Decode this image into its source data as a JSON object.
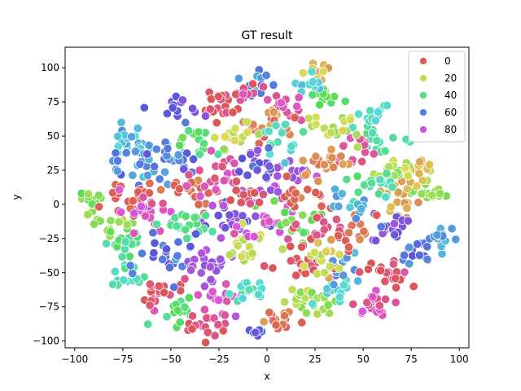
{
  "chart_data": {
    "type": "scatter",
    "title": "GT result",
    "xlabel": "x",
    "ylabel": "y",
    "xlim": [
      -105,
      105
    ],
    "ylim": [
      -105,
      115
    ],
    "xticks": [
      -100,
      -75,
      -50,
      -25,
      0,
      25,
      50,
      75,
      100
    ],
    "yticks": [
      -100,
      -75,
      -50,
      -25,
      0,
      25,
      50,
      75,
      100
    ],
    "grid": false,
    "legend_position": "top-right",
    "legend": [
      {
        "label": "0",
        "color": "#db5f57"
      },
      {
        "label": "20",
        "color": "#b9db57"
      },
      {
        "label": "40",
        "color": "#57db80"
      },
      {
        "label": "60",
        "color": "#5780db"
      },
      {
        "label": "80",
        "color": "#c957db"
      }
    ],
    "hue_range": [
      0,
      99
    ],
    "clusters": [
      {
        "x": -92,
        "y": 3,
        "hue": 28,
        "n": 14,
        "spread": 4
      },
      {
        "x": -80,
        "y": -14,
        "hue": 25,
        "n": 14,
        "spread": 5
      },
      {
        "x": -75,
        "y": -28,
        "hue": 38,
        "n": 16,
        "spread": 5
      },
      {
        "x": -72,
        "y": 45,
        "hue": 52,
        "n": 20,
        "spread": 6
      },
      {
        "x": -68,
        "y": 30,
        "hue": 58,
        "n": 22,
        "spread": 7
      },
      {
        "x": -70,
        "y": 5,
        "hue": 0,
        "n": 24,
        "spread": 8
      },
      {
        "x": -62,
        "y": -5,
        "hue": 85,
        "n": 22,
        "spread": 7
      },
      {
        "x": -70,
        "y": -55,
        "hue": 44,
        "n": 16,
        "spread": 5
      },
      {
        "x": -55,
        "y": -65,
        "hue": 96,
        "n": 20,
        "spread": 6
      },
      {
        "x": -45,
        "y": -80,
        "hue": 36,
        "n": 16,
        "spread": 5
      },
      {
        "x": -30,
        "y": -88,
        "hue": 94,
        "n": 18,
        "spread": 5
      },
      {
        "x": -25,
        "y": -70,
        "hue": 84,
        "n": 18,
        "spread": 6
      },
      {
        "x": -10,
        "y": -62,
        "hue": 46,
        "n": 18,
        "spread": 6
      },
      {
        "x": -5,
        "y": -92,
        "hue": 65,
        "n": 6,
        "spread": 2
      },
      {
        "x": 5,
        "y": -85,
        "hue": 2,
        "n": 18,
        "spread": 4
      },
      {
        "x": 15,
        "y": -70,
        "hue": 22,
        "n": 14,
        "spread": 4
      },
      {
        "x": 25,
        "y": -72,
        "hue": 24,
        "n": 14,
        "spread": 5
      },
      {
        "x": 35,
        "y": -60,
        "hue": 50,
        "n": 14,
        "spread": 5
      },
      {
        "x": 40,
        "y": -45,
        "hue": 58,
        "n": 14,
        "spread": 5
      },
      {
        "x": 55,
        "y": -70,
        "hue": 88,
        "n": 20,
        "spread": 5
      },
      {
        "x": 62,
        "y": -50,
        "hue": 96,
        "n": 22,
        "spread": 6
      },
      {
        "x": 75,
        "y": -35,
        "hue": 62,
        "n": 14,
        "spread": 5
      },
      {
        "x": 88,
        "y": -25,
        "hue": 56,
        "n": 16,
        "spread": 5
      },
      {
        "x": 85,
        "y": 8,
        "hue": 24,
        "n": 18,
        "spread": 5
      },
      {
        "x": 70,
        "y": 2,
        "hue": 10,
        "n": 20,
        "spread": 7
      },
      {
        "x": 65,
        "y": -15,
        "hue": 70,
        "n": 20,
        "spread": 7
      },
      {
        "x": 78,
        "y": 25,
        "hue": 12,
        "n": 14,
        "spread": 4
      },
      {
        "x": 68,
        "y": 28,
        "hue": 20,
        "n": 16,
        "spread": 5
      },
      {
        "x": 55,
        "y": 15,
        "hue": 42,
        "n": 20,
        "spread": 7
      },
      {
        "x": 58,
        "y": 45,
        "hue": 40,
        "n": 18,
        "spread": 7
      },
      {
        "x": 55,
        "y": 68,
        "hue": 44,
        "n": 12,
        "spread": 4
      },
      {
        "x": 45,
        "y": 40,
        "hue": 90,
        "n": 16,
        "spread": 6
      },
      {
        "x": 35,
        "y": 55,
        "hue": 20,
        "n": 18,
        "spread": 6
      },
      {
        "x": 30,
        "y": 80,
        "hue": 32,
        "n": 14,
        "spread": 5
      },
      {
        "x": 25,
        "y": 100,
        "hue": 10,
        "n": 10,
        "spread": 4
      },
      {
        "x": 20,
        "y": 88,
        "hue": 50,
        "n": 10,
        "spread": 4
      },
      {
        "x": 10,
        "y": 70,
        "hue": 90,
        "n": 18,
        "spread": 6
      },
      {
        "x": 0,
        "y": 60,
        "hue": 4,
        "n": 18,
        "spread": 7
      },
      {
        "x": -5,
        "y": 90,
        "hue": 60,
        "n": 12,
        "spread": 5
      },
      {
        "x": -15,
        "y": 80,
        "hue": 92,
        "n": 16,
        "spread": 5
      },
      {
        "x": -15,
        "y": 50,
        "hue": 18,
        "n": 18,
        "spread": 6
      },
      {
        "x": -25,
        "y": 70,
        "hue": 98,
        "n": 18,
        "spread": 6
      },
      {
        "x": -35,
        "y": 45,
        "hue": 36,
        "n": 18,
        "spread": 6
      },
      {
        "x": -45,
        "y": 70,
        "hue": 67,
        "n": 14,
        "spread": 5
      },
      {
        "x": -50,
        "y": 30,
        "hue": 62,
        "n": 22,
        "spread": 7
      },
      {
        "x": -40,
        "y": 10,
        "hue": 2,
        "n": 20,
        "spread": 7
      },
      {
        "x": -25,
        "y": 20,
        "hue": 88,
        "n": 22,
        "spread": 7
      },
      {
        "x": -20,
        "y": -10,
        "hue": 70,
        "n": 24,
        "spread": 8
      },
      {
        "x": -40,
        "y": -15,
        "hue": 40,
        "n": 20,
        "spread": 7
      },
      {
        "x": -50,
        "y": -40,
        "hue": 62,
        "n": 22,
        "spread": 8
      },
      {
        "x": -30,
        "y": -45,
        "hue": 74,
        "n": 22,
        "spread": 7
      },
      {
        "x": -10,
        "y": -35,
        "hue": 18,
        "n": 18,
        "spread": 7
      },
      {
        "x": 0,
        "y": -15,
        "hue": 84,
        "n": 18,
        "spread": 7
      },
      {
        "x": 5,
        "y": 20,
        "hue": 76,
        "n": 22,
        "spread": 8
      },
      {
        "x": 15,
        "y": -10,
        "hue": 30,
        "n": 18,
        "spread": 7
      },
      {
        "x": 20,
        "y": 10,
        "hue": 0,
        "n": 18,
        "spread": 7
      },
      {
        "x": 30,
        "y": -20,
        "hue": 94,
        "n": 18,
        "spread": 7
      },
      {
        "x": 15,
        "y": -45,
        "hue": 98,
        "n": 18,
        "spread": 7
      },
      {
        "x": 30,
        "y": -45,
        "hue": 15,
        "n": 16,
        "spread": 6
      },
      {
        "x": 45,
        "y": -20,
        "hue": 0,
        "n": 16,
        "spread": 6
      },
      {
        "x": 40,
        "y": 5,
        "hue": 54,
        "n": 16,
        "spread": 6
      },
      {
        "x": 30,
        "y": 30,
        "hue": 6,
        "n": 18,
        "spread": 6
      },
      {
        "x": 10,
        "y": 45,
        "hue": 46,
        "n": 16,
        "spread": 6
      },
      {
        "x": -5,
        "y": 30,
        "hue": 68,
        "n": 16,
        "spread": 6
      },
      {
        "x": -10,
        "y": 5,
        "hue": 98,
        "n": 14,
        "spread": 6
      }
    ]
  }
}
